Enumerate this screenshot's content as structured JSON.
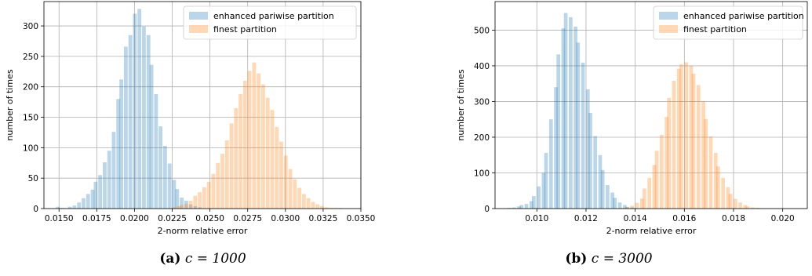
{
  "chart_data": [
    {
      "type": "histogram",
      "xlabel": "2-norm relative error",
      "ylabel": "number of times",
      "xlim": [
        0.014,
        0.035
      ],
      "ylim": [
        0,
        340
      ],
      "xticks": [
        0.015,
        0.0175,
        0.02,
        0.0225,
        0.025,
        0.0275,
        0.03,
        0.0325,
        0.035
      ],
      "xtick_labels": [
        "0.0150",
        "0.0175",
        "0.0200",
        "0.0225",
        "0.0250",
        "0.0275",
        "0.0300",
        "0.0325",
        "0.0350"
      ],
      "yticks": [
        0,
        50,
        100,
        150,
        200,
        250,
        300
      ],
      "grid": true,
      "legend_position": "top-right",
      "caption_label": "(a)",
      "caption_text": "c = 1000",
      "series": [
        {
          "name": "enhanced pariwise partition",
          "color": "#1f77b4",
          "opacity": 0.3,
          "bin_width": 0.00025,
          "bins": [
            [
              0.0148,
              3
            ],
            [
              0.0151,
              1
            ],
            [
              0.0156,
              3
            ],
            [
              0.0159,
              5
            ],
            [
              0.0162,
              10
            ],
            [
              0.0165,
              17
            ],
            [
              0.0168,
              24
            ],
            [
              0.0171,
              31
            ],
            [
              0.0173,
              44
            ],
            [
              0.0176,
              55
            ],
            [
              0.0179,
              76
            ],
            [
              0.0182,
              95
            ],
            [
              0.0185,
              126
            ],
            [
              0.0188,
              180
            ],
            [
              0.019,
              212
            ],
            [
              0.0193,
              266
            ],
            [
              0.0196,
              285
            ],
            [
              0.0199,
              320
            ],
            [
              0.0202,
              328
            ],
            [
              0.0205,
              299
            ],
            [
              0.0208,
              285
            ],
            [
              0.021,
              236
            ],
            [
              0.0213,
              188
            ],
            [
              0.0216,
              135
            ],
            [
              0.0219,
              103
            ],
            [
              0.0222,
              74
            ],
            [
              0.0225,
              47
            ],
            [
              0.0227,
              32
            ],
            [
              0.023,
              18
            ],
            [
              0.0233,
              13
            ],
            [
              0.0236,
              7
            ],
            [
              0.0239,
              4
            ],
            [
              0.0242,
              2
            ]
          ]
        },
        {
          "name": "finest partition",
          "color": "#ff7f0e",
          "opacity": 0.3,
          "bin_width": 0.00025,
          "bins": [
            [
              0.0225,
              2
            ],
            [
              0.0228,
              4
            ],
            [
              0.023,
              6
            ],
            [
              0.0233,
              8
            ],
            [
              0.0236,
              13
            ],
            [
              0.0239,
              21
            ],
            [
              0.0242,
              27
            ],
            [
              0.0245,
              35
            ],
            [
              0.0248,
              44
            ],
            [
              0.0251,
              57
            ],
            [
              0.0254,
              75
            ],
            [
              0.0257,
              90
            ],
            [
              0.026,
              112
            ],
            [
              0.0263,
              140
            ],
            [
              0.0266,
              165
            ],
            [
              0.0269,
              188
            ],
            [
              0.0272,
              210
            ],
            [
              0.0275,
              226
            ],
            [
              0.0278,
              240
            ],
            [
              0.0281,
              222
            ],
            [
              0.0284,
              204
            ],
            [
              0.0287,
              182
            ],
            [
              0.029,
              162
            ],
            [
              0.0293,
              134
            ],
            [
              0.0296,
              110
            ],
            [
              0.0299,
              87
            ],
            [
              0.0302,
              65
            ],
            [
              0.0305,
              48
            ],
            [
              0.0308,
              34
            ],
            [
              0.0311,
              24
            ],
            [
              0.0314,
              17
            ],
            [
              0.0317,
              11
            ],
            [
              0.032,
              7
            ],
            [
              0.0323,
              4
            ],
            [
              0.0326,
              2
            ],
            [
              0.0329,
              1
            ],
            [
              0.0332,
              1
            ],
            [
              0.0335,
              1
            ]
          ]
        }
      ]
    },
    {
      "type": "histogram",
      "xlabel": "2-norm relative error",
      "ylabel": "number of times",
      "xlim": [
        0.0083,
        0.021
      ],
      "ylim": [
        0,
        580
      ],
      "xticks": [
        0.01,
        0.012,
        0.014,
        0.016,
        0.018,
        0.02
      ],
      "xtick_labels": [
        "0.010",
        "0.012",
        "0.014",
        "0.016",
        "0.018",
        "0.020"
      ],
      "yticks": [
        0,
        100,
        200,
        300,
        400,
        500
      ],
      "grid": true,
      "legend_position": "top-right",
      "caption_label": "(b)",
      "caption_text": "c = 3000",
      "series": [
        {
          "name": "enhanced pariwise partition",
          "color": "#1f77b4",
          "opacity": 0.3,
          "bin_width": 0.00015,
          "bins": [
            [
              0.0088,
              2
            ],
            [
              0.009,
              3
            ],
            [
              0.0092,
              6
            ],
            [
              0.0093,
              10
            ],
            [
              0.0095,
              13
            ],
            [
              0.0097,
              21
            ],
            [
              0.0098,
              35
            ],
            [
              0.01,
              62
            ],
            [
              0.0102,
              100
            ],
            [
              0.0103,
              156
            ],
            [
              0.0105,
              250
            ],
            [
              0.0107,
              340
            ],
            [
              0.0108,
              432
            ],
            [
              0.011,
              505
            ],
            [
              0.0111,
              548
            ],
            [
              0.0113,
              536
            ],
            [
              0.0115,
              510
            ],
            [
              0.0116,
              465
            ],
            [
              0.0118,
              409
            ],
            [
              0.012,
              334
            ],
            [
              0.0121,
              268
            ],
            [
              0.0123,
              203
            ],
            [
              0.0125,
              150
            ],
            [
              0.0126,
              108
            ],
            [
              0.0128,
              66
            ],
            [
              0.013,
              45
            ],
            [
              0.0131,
              30
            ],
            [
              0.0133,
              17
            ],
            [
              0.0135,
              10
            ],
            [
              0.0136,
              5
            ],
            [
              0.0138,
              3
            ],
            [
              0.014,
              1
            ]
          ]
        },
        {
          "name": "finest partition",
          "color": "#ff7f0e",
          "opacity": 0.3,
          "bin_width": 0.00015,
          "bins": [
            [
              0.0134,
              2
            ],
            [
              0.0136,
              4
            ],
            [
              0.0138,
              8
            ],
            [
              0.014,
              16
            ],
            [
              0.0142,
              28
            ],
            [
              0.0143,
              56
            ],
            [
              0.0145,
              86
            ],
            [
              0.0147,
              122
            ],
            [
              0.0148,
              162
            ],
            [
              0.015,
              207
            ],
            [
              0.0152,
              257
            ],
            [
              0.0153,
              310
            ],
            [
              0.0155,
              358
            ],
            [
              0.0157,
              392
            ],
            [
              0.0158,
              404
            ],
            [
              0.016,
              410
            ],
            [
              0.0162,
              400
            ],
            [
              0.0163,
              378
            ],
            [
              0.0165,
              346
            ],
            [
              0.0167,
              300
            ],
            [
              0.0168,
              251
            ],
            [
              0.017,
              202
            ],
            [
              0.0172,
              156
            ],
            [
              0.0173,
              118
            ],
            [
              0.0175,
              86
            ],
            [
              0.0177,
              60
            ],
            [
              0.0178,
              41
            ],
            [
              0.018,
              27
            ],
            [
              0.0182,
              17
            ],
            [
              0.0184,
              10
            ],
            [
              0.0185,
              6
            ],
            [
              0.0187,
              3
            ],
            [
              0.0189,
              2
            ],
            [
              0.019,
              1
            ]
          ]
        }
      ]
    }
  ]
}
